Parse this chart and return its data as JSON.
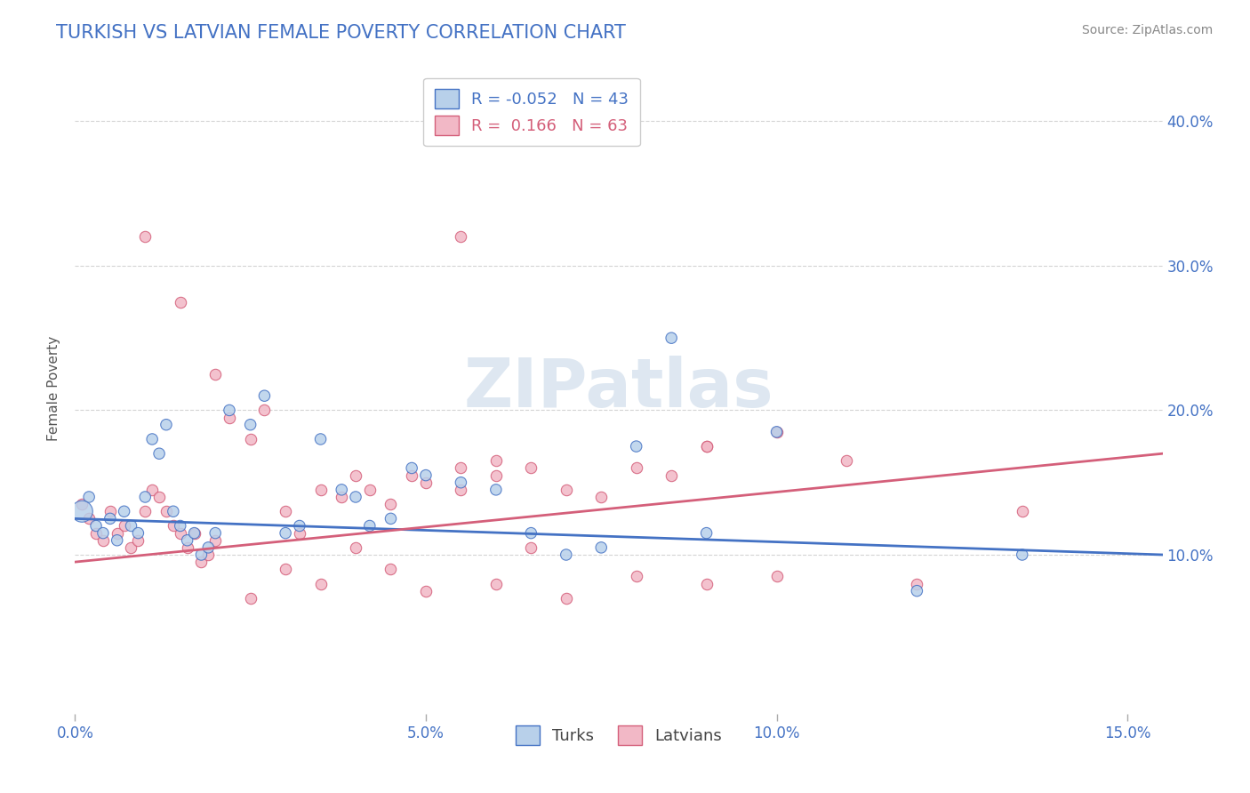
{
  "title": "TURKISH VS LATVIAN FEMALE POVERTY CORRELATION CHART",
  "source": "Source: ZipAtlas.com",
  "ylabel": "Female Poverty",
  "xlim": [
    0.0,
    0.155
  ],
  "ylim": [
    -0.01,
    0.44
  ],
  "xticks": [
    0.0,
    0.05,
    0.1,
    0.15
  ],
  "xtick_labels": [
    "0.0%",
    "5.0%",
    "10.0%",
    "15.0%"
  ],
  "yticks": [
    0.1,
    0.2,
    0.3,
    0.4
  ],
  "ytick_labels": [
    "10.0%",
    "20.0%",
    "30.0%",
    "40.0%"
  ],
  "turkish_color": "#b8d0ea",
  "latvian_color": "#f2b8c6",
  "turkish_line_color": "#4472c4",
  "latvian_line_color": "#d45f7a",
  "R_turkish": -0.052,
  "N_turkish": 43,
  "R_latvian": 0.166,
  "N_latvian": 63,
  "legend_labels": [
    "Turks",
    "Latvians"
  ],
  "watermark": "ZIPatlas",
  "background_color": "#ffffff",
  "title_color": "#4472c4",
  "source_color": "#888888",
  "tick_label_color": "#4472c4",
  "ylabel_color": "#555555",
  "grid_color": "#d0d0d0",
  "turkish_x": [
    0.002,
    0.003,
    0.004,
    0.005,
    0.006,
    0.007,
    0.008,
    0.009,
    0.01,
    0.011,
    0.012,
    0.013,
    0.014,
    0.015,
    0.016,
    0.017,
    0.018,
    0.019,
    0.02,
    0.022,
    0.025,
    0.027,
    0.03,
    0.032,
    0.035,
    0.038,
    0.04,
    0.042,
    0.045,
    0.048,
    0.05,
    0.055,
    0.06,
    0.065,
    0.07,
    0.075,
    0.08,
    0.085,
    0.09,
    0.1,
    0.12,
    0.135,
    0.001
  ],
  "turkish_y": [
    0.14,
    0.12,
    0.115,
    0.125,
    0.11,
    0.13,
    0.12,
    0.115,
    0.14,
    0.18,
    0.17,
    0.19,
    0.13,
    0.12,
    0.11,
    0.115,
    0.1,
    0.105,
    0.115,
    0.2,
    0.19,
    0.21,
    0.115,
    0.12,
    0.18,
    0.145,
    0.14,
    0.12,
    0.125,
    0.16,
    0.155,
    0.15,
    0.145,
    0.115,
    0.1,
    0.105,
    0.175,
    0.25,
    0.115,
    0.185,
    0.075,
    0.1,
    0.13
  ],
  "turkish_sizes": [
    80,
    80,
    80,
    80,
    80,
    80,
    80,
    80,
    80,
    80,
    80,
    80,
    80,
    80,
    80,
    80,
    80,
    80,
    80,
    80,
    80,
    80,
    80,
    80,
    80,
    80,
    80,
    80,
    80,
    80,
    80,
    80,
    80,
    80,
    80,
    80,
    80,
    80,
    80,
    80,
    80,
    80,
    300
  ],
  "latvian_x": [
    0.001,
    0.002,
    0.003,
    0.004,
    0.005,
    0.006,
    0.007,
    0.008,
    0.009,
    0.01,
    0.011,
    0.012,
    0.013,
    0.014,
    0.015,
    0.016,
    0.017,
    0.018,
    0.019,
    0.02,
    0.022,
    0.025,
    0.027,
    0.03,
    0.032,
    0.035,
    0.038,
    0.04,
    0.042,
    0.045,
    0.048,
    0.05,
    0.055,
    0.06,
    0.065,
    0.07,
    0.075,
    0.08,
    0.085,
    0.09,
    0.01,
    0.015,
    0.02,
    0.025,
    0.03,
    0.035,
    0.04,
    0.045,
    0.05,
    0.055,
    0.06,
    0.065,
    0.07,
    0.08,
    0.09,
    0.1,
    0.12,
    0.135,
    0.09,
    0.1,
    0.11,
    0.055,
    0.06
  ],
  "latvian_y": [
    0.135,
    0.125,
    0.115,
    0.11,
    0.13,
    0.115,
    0.12,
    0.105,
    0.11,
    0.13,
    0.145,
    0.14,
    0.13,
    0.12,
    0.115,
    0.105,
    0.115,
    0.095,
    0.1,
    0.11,
    0.195,
    0.18,
    0.2,
    0.13,
    0.115,
    0.145,
    0.14,
    0.155,
    0.145,
    0.135,
    0.155,
    0.15,
    0.145,
    0.155,
    0.16,
    0.145,
    0.14,
    0.16,
    0.155,
    0.175,
    0.32,
    0.275,
    0.225,
    0.07,
    0.09,
    0.08,
    0.105,
    0.09,
    0.075,
    0.16,
    0.165,
    0.105,
    0.07,
    0.085,
    0.08,
    0.085,
    0.08,
    0.13,
    0.175,
    0.185,
    0.165,
    0.32,
    0.08
  ],
  "turk_trend_x0": 0.0,
  "turk_trend_x1": 0.155,
  "turk_trend_y0": 0.125,
  "turk_trend_y1": 0.1,
  "latv_trend_x0": 0.0,
  "latv_trend_x1": 0.155,
  "latv_trend_y0": 0.095,
  "latv_trend_y1": 0.17
}
